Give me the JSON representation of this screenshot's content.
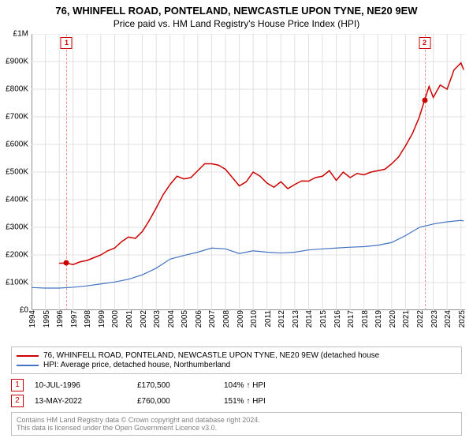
{
  "title": "76, WHINFELL ROAD, PONTELAND, NEWCASTLE UPON TYNE, NE20 9EW",
  "subtitle": "Price paid vs. HM Land Registry's House Price Index (HPI)",
  "chart": {
    "type": "line",
    "background_color": "#ffffff",
    "grid_color": "#e0e0e0",
    "axis_color": "#404040",
    "ylim": [
      0,
      1000000
    ],
    "y_ticks": [
      0,
      100000,
      200000,
      300000,
      400000,
      500000,
      600000,
      700000,
      800000,
      900000,
      1000000
    ],
    "y_tick_labels": [
      "£0",
      "£100K",
      "£200K",
      "£300K",
      "£400K",
      "£500K",
      "£600K",
      "£700K",
      "£800K",
      "£900K",
      "£1M"
    ],
    "x_ticks": [
      1994,
      1995,
      1996,
      1997,
      1998,
      1999,
      2000,
      2001,
      2002,
      2003,
      2004,
      2005,
      2006,
      2007,
      2008,
      2009,
      2010,
      2011,
      2012,
      2013,
      2014,
      2015,
      2016,
      2017,
      2018,
      2019,
      2020,
      2021,
      2022,
      2023,
      2024,
      2025
    ],
    "xlim": [
      1994,
      2025.3
    ],
    "title_fontsize": 13,
    "label_fontsize": 10,
    "tick_fontsize": 10,
    "series": [
      {
        "label": "76, WHINFELL ROAD, PONTELAND, NEWCASTLE UPON TYNE, NE20 9EW (detached house",
        "color": "#cc0000",
        "line_width": 1.5,
        "data": [
          [
            1996.0,
            170000
          ],
          [
            1996.53,
            170500
          ],
          [
            1997,
            165000
          ],
          [
            1997.5,
            175000
          ],
          [
            1998,
            180000
          ],
          [
            1998.5,
            190000
          ],
          [
            1999,
            200000
          ],
          [
            1999.5,
            215000
          ],
          [
            2000,
            225000
          ],
          [
            2000.5,
            248000
          ],
          [
            2001,
            265000
          ],
          [
            2001.5,
            260000
          ],
          [
            2002,
            285000
          ],
          [
            2002.5,
            325000
          ],
          [
            2003,
            370000
          ],
          [
            2003.5,
            418000
          ],
          [
            2004,
            455000
          ],
          [
            2004.5,
            485000
          ],
          [
            2005,
            475000
          ],
          [
            2005.5,
            480000
          ],
          [
            2006,
            505000
          ],
          [
            2006.5,
            530000
          ],
          [
            2007,
            530000
          ],
          [
            2007.5,
            525000
          ],
          [
            2008,
            510000
          ],
          [
            2008.5,
            480000
          ],
          [
            2009,
            450000
          ],
          [
            2009.5,
            465000
          ],
          [
            2010,
            500000
          ],
          [
            2010.5,
            485000
          ],
          [
            2011,
            460000
          ],
          [
            2011.5,
            445000
          ],
          [
            2012,
            465000
          ],
          [
            2012.5,
            440000
          ],
          [
            2013,
            455000
          ],
          [
            2013.5,
            468000
          ],
          [
            2014,
            467000
          ],
          [
            2014.5,
            480000
          ],
          [
            2015,
            485000
          ],
          [
            2015.5,
            505000
          ],
          [
            2016,
            470000
          ],
          [
            2016.5,
            500000
          ],
          [
            2017,
            480000
          ],
          [
            2017.5,
            495000
          ],
          [
            2018,
            490000
          ],
          [
            2018.5,
            500000
          ],
          [
            2019,
            505000
          ],
          [
            2019.5,
            510000
          ],
          [
            2020,
            530000
          ],
          [
            2020.5,
            555000
          ],
          [
            2021,
            595000
          ],
          [
            2021.5,
            640000
          ],
          [
            2022,
            700000
          ],
          [
            2022.37,
            760000
          ],
          [
            2022.7,
            810000
          ],
          [
            2023,
            770000
          ],
          [
            2023.5,
            815000
          ],
          [
            2024,
            800000
          ],
          [
            2024.5,
            870000
          ],
          [
            2025,
            895000
          ],
          [
            2025.2,
            870000
          ]
        ]
      },
      {
        "label": "HPI: Average price, detached house, Northumberland",
        "color": "#4472c4",
        "line_width": 1.2,
        "data": [
          [
            1994,
            82000
          ],
          [
            1995,
            80000
          ],
          [
            1996,
            80000
          ],
          [
            1997,
            83000
          ],
          [
            1998,
            88000
          ],
          [
            1999,
            95000
          ],
          [
            2000,
            102000
          ],
          [
            2001,
            112000
          ],
          [
            2002,
            128000
          ],
          [
            2003,
            152000
          ],
          [
            2004,
            185000
          ],
          [
            2005,
            198000
          ],
          [
            2006,
            210000
          ],
          [
            2007,
            225000
          ],
          [
            2008,
            222000
          ],
          [
            2009,
            205000
          ],
          [
            2010,
            215000
          ],
          [
            2011,
            210000
          ],
          [
            2012,
            207000
          ],
          [
            2013,
            210000
          ],
          [
            2014,
            218000
          ],
          [
            2015,
            222000
          ],
          [
            2016,
            225000
          ],
          [
            2017,
            228000
          ],
          [
            2018,
            230000
          ],
          [
            2019,
            235000
          ],
          [
            2020,
            245000
          ],
          [
            2021,
            270000
          ],
          [
            2022,
            300000
          ],
          [
            2023,
            312000
          ],
          [
            2024,
            320000
          ],
          [
            2025,
            325000
          ],
          [
            2025.2,
            323000
          ]
        ]
      }
    ],
    "sale_markers": [
      {
        "n": "1",
        "x": 1996.53,
        "y": 170500,
        "color": "#cc0000"
      },
      {
        "n": "2",
        "x": 2022.37,
        "y": 760000,
        "color": "#cc0000"
      }
    ]
  },
  "legend": {
    "items": [
      {
        "color": "#cc0000",
        "label": "76, WHINFELL ROAD, PONTELAND, NEWCASTLE UPON TYNE, NE20 9EW (detached house"
      },
      {
        "color": "#4472c4",
        "label": "HPI: Average price, detached house, Northumberland"
      }
    ]
  },
  "sales": [
    {
      "n": "1",
      "date": "10-JUL-1996",
      "price": "£170,500",
      "pct": "104% ↑ HPI"
    },
    {
      "n": "2",
      "date": "13-MAY-2022",
      "price": "£760,000",
      "pct": "151% ↑ HPI"
    }
  ],
  "footer": {
    "line1": "Contains HM Land Registry data © Crown copyright and database right 2024.",
    "line2": "This data is licensed under the Open Government Licence v3.0."
  }
}
